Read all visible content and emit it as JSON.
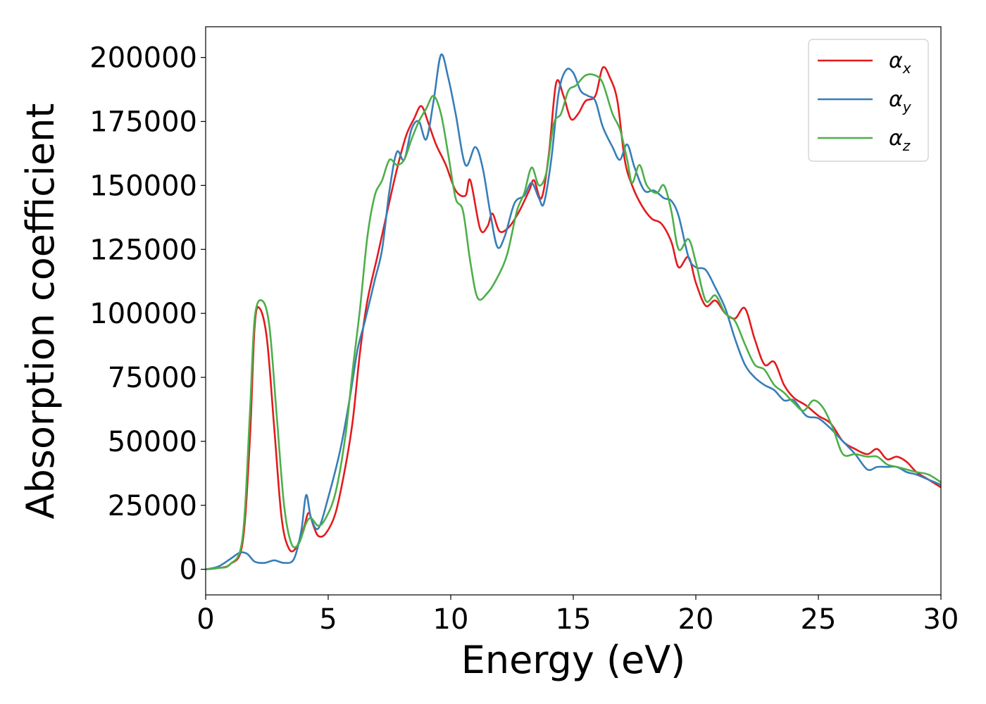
{
  "chart_data": {
    "type": "line",
    "title": "",
    "xlabel": "Energy (eV)",
    "ylabel": "Absorption coefficient",
    "xlim": [
      0,
      30
    ],
    "ylim": [
      -10000,
      212000
    ],
    "xticks": [
      0,
      5,
      10,
      15,
      20,
      25,
      30
    ],
    "xtick_labels": [
      "0",
      "5",
      "10",
      "15",
      "20",
      "25",
      "30"
    ],
    "yticks": [
      0,
      25000,
      50000,
      75000,
      100000,
      125000,
      150000,
      175000,
      200000
    ],
    "ytick_labels": [
      "0",
      "25000",
      "50000",
      "75000",
      "100000",
      "125000",
      "150000",
      "175000",
      "200000"
    ],
    "grid": false,
    "legend_position": "top-right",
    "series": [
      {
        "name": "α",
        "sub": "x",
        "color": "#e41a1c",
        "points": [
          [
            0,
            0
          ],
          [
            0.5,
            500
          ],
          [
            1.0,
            2000
          ],
          [
            1.5,
            10000
          ],
          [
            1.8,
            50000
          ],
          [
            2.0,
            95000
          ],
          [
            2.2,
            102000
          ],
          [
            2.5,
            90000
          ],
          [
            2.8,
            55000
          ],
          [
            3.1,
            20000
          ],
          [
            3.4,
            8000
          ],
          [
            3.7,
            8500
          ],
          [
            4.0,
            16000
          ],
          [
            4.2,
            22000
          ],
          [
            4.4,
            17000
          ],
          [
            4.6,
            13000
          ],
          [
            4.9,
            14000
          ],
          [
            5.3,
            22000
          ],
          [
            5.7,
            40000
          ],
          [
            6.0,
            58000
          ],
          [
            6.3,
            85000
          ],
          [
            6.6,
            105000
          ],
          [
            7.0,
            122000
          ],
          [
            7.3,
            135000
          ],
          [
            7.6,
            148000
          ],
          [
            7.9,
            160000
          ],
          [
            8.2,
            170000
          ],
          [
            8.5,
            176000
          ],
          [
            8.8,
            181000
          ],
          [
            9.1,
            174000
          ],
          [
            9.4,
            166000
          ],
          [
            9.8,
            158000
          ],
          [
            10.2,
            148000
          ],
          [
            10.6,
            146000
          ],
          [
            10.8,
            152000
          ],
          [
            11.2,
            133000
          ],
          [
            11.5,
            134000
          ],
          [
            11.7,
            139000
          ],
          [
            12.0,
            132000
          ],
          [
            12.4,
            134000
          ],
          [
            12.8,
            140000
          ],
          [
            13.2,
            148000
          ],
          [
            13.4,
            152000
          ],
          [
            13.7,
            145000
          ],
          [
            14.0,
            162000
          ],
          [
            14.3,
            190000
          ],
          [
            14.6,
            185000
          ],
          [
            14.9,
            176000
          ],
          [
            15.2,
            178000
          ],
          [
            15.5,
            183000
          ],
          [
            15.9,
            185000
          ],
          [
            16.2,
            196000
          ],
          [
            16.5,
            192000
          ],
          [
            16.8,
            183000
          ],
          [
            17.1,
            160000
          ],
          [
            17.4,
            150000
          ],
          [
            17.8,
            142000
          ],
          [
            18.2,
            137000
          ],
          [
            18.6,
            135000
          ],
          [
            19.0,
            128000
          ],
          [
            19.3,
            118000
          ],
          [
            19.7,
            122000
          ],
          [
            20.0,
            112000
          ],
          [
            20.4,
            103000
          ],
          [
            20.8,
            105000
          ],
          [
            21.2,
            100000
          ],
          [
            21.6,
            98000
          ],
          [
            22.0,
            102000
          ],
          [
            22.4,
            90000
          ],
          [
            22.8,
            80000
          ],
          [
            23.2,
            81000
          ],
          [
            23.6,
            72000
          ],
          [
            24.0,
            67000
          ],
          [
            24.5,
            64000
          ],
          [
            25.0,
            60000
          ],
          [
            25.5,
            57000
          ],
          [
            26.0,
            50000
          ],
          [
            26.5,
            47000
          ],
          [
            27.0,
            45000
          ],
          [
            27.4,
            47000
          ],
          [
            27.8,
            43000
          ],
          [
            28.2,
            44000
          ],
          [
            28.6,
            42000
          ],
          [
            29.0,
            38000
          ],
          [
            29.5,
            35000
          ],
          [
            30.0,
            32000
          ]
        ]
      },
      {
        "name": "α",
        "sub": "y",
        "color": "#377eb8",
        "points": [
          [
            0,
            0
          ],
          [
            0.5,
            1000
          ],
          [
            1.0,
            4000
          ],
          [
            1.4,
            6500
          ],
          [
            1.7,
            6000
          ],
          [
            2.0,
            3000
          ],
          [
            2.4,
            2500
          ],
          [
            2.8,
            3500
          ],
          [
            3.2,
            2500
          ],
          [
            3.6,
            4000
          ],
          [
            3.9,
            15000
          ],
          [
            4.1,
            29000
          ],
          [
            4.3,
            20000
          ],
          [
            4.6,
            16000
          ],
          [
            5.0,
            28000
          ],
          [
            5.5,
            47000
          ],
          [
            5.9,
            68000
          ],
          [
            6.2,
            86000
          ],
          [
            6.5,
            97000
          ],
          [
            6.9,
            113000
          ],
          [
            7.2,
            125000
          ],
          [
            7.5,
            148000
          ],
          [
            7.8,
            163000
          ],
          [
            8.1,
            160000
          ],
          [
            8.4,
            172000
          ],
          [
            8.7,
            175000
          ],
          [
            9.0,
            168000
          ],
          [
            9.3,
            183000
          ],
          [
            9.6,
            201000
          ],
          [
            9.9,
            192000
          ],
          [
            10.2,
            178000
          ],
          [
            10.6,
            158000
          ],
          [
            11.0,
            165000
          ],
          [
            11.3,
            157000
          ],
          [
            11.6,
            140000
          ],
          [
            11.9,
            126000
          ],
          [
            12.2,
            130000
          ],
          [
            12.6,
            143000
          ],
          [
            13.0,
            146000
          ],
          [
            13.3,
            151000
          ],
          [
            13.6,
            145000
          ],
          [
            13.8,
            143000
          ],
          [
            14.1,
            160000
          ],
          [
            14.4,
            186000
          ],
          [
            14.7,
            195000
          ],
          [
            15.0,
            194000
          ],
          [
            15.3,
            187000
          ],
          [
            15.6,
            185000
          ],
          [
            15.9,
            183000
          ],
          [
            16.2,
            173000
          ],
          [
            16.6,
            165000
          ],
          [
            16.9,
            160000
          ],
          [
            17.2,
            166000
          ],
          [
            17.5,
            157000
          ],
          [
            17.9,
            148000
          ],
          [
            18.3,
            148000
          ],
          [
            18.7,
            145000
          ],
          [
            19.0,
            144000
          ],
          [
            19.3,
            138000
          ],
          [
            19.7,
            122000
          ],
          [
            20.0,
            118000
          ],
          [
            20.4,
            117000
          ],
          [
            20.8,
            110000
          ],
          [
            21.2,
            102000
          ],
          [
            21.6,
            90000
          ],
          [
            22.0,
            80000
          ],
          [
            22.4,
            75000
          ],
          [
            22.8,
            72000
          ],
          [
            23.2,
            70000
          ],
          [
            23.6,
            66000
          ],
          [
            24.0,
            66000
          ],
          [
            24.5,
            60000
          ],
          [
            25.0,
            59000
          ],
          [
            25.5,
            55000
          ],
          [
            26.0,
            50000
          ],
          [
            26.5,
            45000
          ],
          [
            27.0,
            39000
          ],
          [
            27.4,
            40000
          ],
          [
            27.8,
            40000
          ],
          [
            28.2,
            40000
          ],
          [
            28.6,
            38000
          ],
          [
            29.0,
            37000
          ],
          [
            29.5,
            35000
          ],
          [
            30.0,
            33000
          ]
        ]
      },
      {
        "name": "α",
        "sub": "z",
        "color": "#4daf4a",
        "points": [
          [
            0,
            0
          ],
          [
            0.5,
            500
          ],
          [
            1.0,
            2000
          ],
          [
            1.5,
            12000
          ],
          [
            1.8,
            60000
          ],
          [
            2.0,
            98000
          ],
          [
            2.3,
            105000
          ],
          [
            2.6,
            95000
          ],
          [
            2.9,
            60000
          ],
          [
            3.2,
            25000
          ],
          [
            3.5,
            10000
          ],
          [
            3.8,
            10000
          ],
          [
            4.1,
            18000
          ],
          [
            4.3,
            20000
          ],
          [
            4.6,
            17000
          ],
          [
            4.9,
            20000
          ],
          [
            5.3,
            30000
          ],
          [
            5.7,
            52000
          ],
          [
            6.0,
            78000
          ],
          [
            6.3,
            102000
          ],
          [
            6.6,
            130000
          ],
          [
            6.9,
            146000
          ],
          [
            7.2,
            152000
          ],
          [
            7.5,
            160000
          ],
          [
            7.8,
            158000
          ],
          [
            8.1,
            160000
          ],
          [
            8.4,
            168000
          ],
          [
            8.7,
            175000
          ],
          [
            9.0,
            180000
          ],
          [
            9.3,
            185000
          ],
          [
            9.6,
            178000
          ],
          [
            9.9,
            162000
          ],
          [
            10.2,
            145000
          ],
          [
            10.5,
            140000
          ],
          [
            10.8,
            120000
          ],
          [
            11.1,
            106000
          ],
          [
            11.5,
            108000
          ],
          [
            11.9,
            114000
          ],
          [
            12.3,
            123000
          ],
          [
            12.7,
            140000
          ],
          [
            13.0,
            147000
          ],
          [
            13.3,
            157000
          ],
          [
            13.6,
            150000
          ],
          [
            13.9,
            155000
          ],
          [
            14.2,
            174000
          ],
          [
            14.5,
            178000
          ],
          [
            14.8,
            187000
          ],
          [
            15.1,
            189000
          ],
          [
            15.5,
            193000
          ],
          [
            15.9,
            193000
          ],
          [
            16.2,
            190000
          ],
          [
            16.6,
            178000
          ],
          [
            16.9,
            172000
          ],
          [
            17.2,
            160000
          ],
          [
            17.4,
            151000
          ],
          [
            17.7,
            158000
          ],
          [
            18.0,
            150000
          ],
          [
            18.4,
            147000
          ],
          [
            18.7,
            150000
          ],
          [
            19.0,
            140000
          ],
          [
            19.3,
            125000
          ],
          [
            19.7,
            129000
          ],
          [
            20.0,
            120000
          ],
          [
            20.4,
            105000
          ],
          [
            20.8,
            107000
          ],
          [
            21.2,
            100000
          ],
          [
            21.6,
            97000
          ],
          [
            22.0,
            88000
          ],
          [
            22.4,
            80000
          ],
          [
            22.8,
            78000
          ],
          [
            23.2,
            72000
          ],
          [
            23.6,
            69000
          ],
          [
            24.0,
            65000
          ],
          [
            24.4,
            62000
          ],
          [
            24.8,
            66000
          ],
          [
            25.2,
            63000
          ],
          [
            25.6,
            55000
          ],
          [
            26.0,
            45000
          ],
          [
            26.5,
            45000
          ],
          [
            27.0,
            44000
          ],
          [
            27.4,
            44000
          ],
          [
            27.8,
            41000
          ],
          [
            28.2,
            40000
          ],
          [
            28.6,
            39000
          ],
          [
            29.0,
            38000
          ],
          [
            29.5,
            37000
          ],
          [
            30.0,
            34000
          ]
        ]
      }
    ]
  }
}
